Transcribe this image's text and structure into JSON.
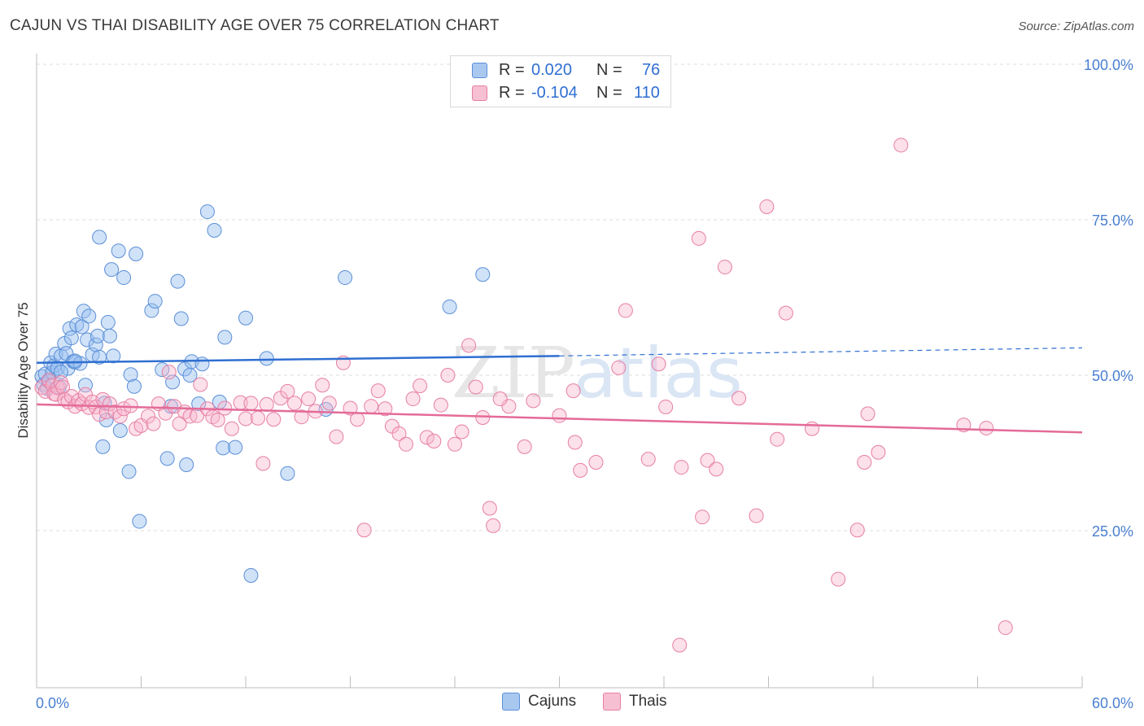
{
  "title": "CAJUN VS THAI DISABILITY AGE OVER 75 CORRELATION CHART",
  "source": "Source: ZipAtlas.com",
  "watermark": "ZIPatlas",
  "legend": {
    "rows": [
      {
        "r_label": "R =",
        "r_value": "0.020",
        "n_label": "N =",
        "n_value": "76",
        "color": "#a9c8f0",
        "border": "#5b8fd8"
      },
      {
        "r_label": "R =",
        "r_value": "-0.104",
        "n_label": "N =",
        "n_value": "110",
        "color": "#f7bfd2",
        "border": "#e77fa3"
      }
    ]
  },
  "bottom_legend": [
    {
      "label": "Cajuns",
      "color": "#a9c8f0",
      "border": "#5b8fd8"
    },
    {
      "label": "Thais",
      "color": "#f7bfd2",
      "border": "#e77fa3"
    }
  ],
  "chart_data": {
    "type": "scatter",
    "title": "CAJUN VS THAI DISABILITY AGE OVER 75 CORRELATION CHART",
    "xlabel": "",
    "ylabel": "Disability Age Over 75",
    "xlim": [
      0,
      60
    ],
    "ylim": [
      0,
      105
    ],
    "x_tick_labels": [
      "0.0%",
      "60.0%"
    ],
    "y_ticks": [
      25,
      50,
      75,
      100
    ],
    "y_tick_labels": [
      "25.0%",
      "50.0%",
      "75.0%",
      "100.0%"
    ],
    "grid": true,
    "series": [
      {
        "name": "Cajuns",
        "color": "#5b8fd8",
        "fill": "rgba(150,190,240,0.45)",
        "trend": {
          "x0": 0,
          "y0": 52.0,
          "x1": 30,
          "y1": 53.1,
          "x_dash_end": 60,
          "y_dash_end": 54.4,
          "color": "#2f6fd1"
        },
        "points": [
          [
            0.3,
            49.8
          ],
          [
            0.4,
            48.5
          ],
          [
            0.5,
            50.2
          ],
          [
            0.6,
            47.9
          ],
          [
            0.7,
            49.0
          ],
          [
            0.8,
            52.0
          ],
          [
            0.9,
            50.4
          ],
          [
            1.0,
            51.5
          ],
          [
            1.1,
            53.4
          ],
          [
            1.2,
            51.1
          ],
          [
            1.3,
            48.1
          ],
          [
            1.4,
            53.1
          ],
          [
            1.6,
            55.1
          ],
          [
            1.7,
            53.5
          ],
          [
            1.8,
            51.1
          ],
          [
            1.9,
            57.5
          ],
          [
            2.0,
            56.0
          ],
          [
            2.1,
            52.2
          ],
          [
            2.2,
            52.1
          ],
          [
            2.3,
            58.1
          ],
          [
            2.5,
            51.9
          ],
          [
            2.6,
            57.8
          ],
          [
            2.7,
            60.3
          ],
          [
            2.8,
            48.4
          ],
          [
            2.9,
            55.7
          ],
          [
            3.0,
            59.5
          ],
          [
            3.2,
            53.3
          ],
          [
            3.4,
            54.9
          ],
          [
            3.5,
            56.3
          ],
          [
            3.6,
            52.9
          ],
          [
            3.6,
            72.2
          ],
          [
            3.8,
            38.5
          ],
          [
            3.9,
            45.5
          ],
          [
            4.0,
            42.8
          ],
          [
            4.1,
            58.5
          ],
          [
            4.2,
            56.3
          ],
          [
            4.3,
            67.0
          ],
          [
            4.4,
            53.1
          ],
          [
            4.7,
            70.0
          ],
          [
            4.8,
            41.1
          ],
          [
            5.0,
            65.7
          ],
          [
            5.3,
            34.5
          ],
          [
            5.4,
            50.1
          ],
          [
            5.6,
            48.2
          ],
          [
            5.7,
            69.5
          ],
          [
            5.9,
            26.5
          ],
          [
            6.6,
            60.4
          ],
          [
            6.8,
            61.9
          ],
          [
            7.2,
            50.9
          ],
          [
            7.5,
            36.6
          ],
          [
            7.7,
            45.0
          ],
          [
            7.8,
            48.9
          ],
          [
            8.1,
            65.1
          ],
          [
            8.3,
            59.1
          ],
          [
            8.5,
            51.0
          ],
          [
            8.6,
            35.6
          ],
          [
            8.8,
            50.0
          ],
          [
            8.9,
            52.2
          ],
          [
            9.3,
            45.4
          ],
          [
            9.5,
            51.8
          ],
          [
            9.8,
            76.3
          ],
          [
            10.2,
            73.3
          ],
          [
            10.5,
            45.7
          ],
          [
            10.7,
            38.3
          ],
          [
            10.8,
            56.1
          ],
          [
            11.4,
            38.4
          ],
          [
            12.0,
            59.2
          ],
          [
            12.3,
            17.8
          ],
          [
            13.2,
            52.7
          ],
          [
            14.4,
            34.2
          ],
          [
            16.6,
            44.5
          ],
          [
            17.7,
            65.7
          ],
          [
            23.7,
            61.0
          ],
          [
            25.6,
            66.2
          ],
          [
            1.4,
            50.5
          ],
          [
            2.2,
            52.3
          ]
        ]
      },
      {
        "name": "Thais",
        "color": "#e77fa3",
        "fill": "rgba(247,180,205,0.42)",
        "trend": {
          "x0": 0,
          "y0": 45.3,
          "x1": 60,
          "y1": 40.8,
          "color": "#e46b98"
        },
        "points": [
          [
            0.3,
            48.0
          ],
          [
            0.5,
            47.4
          ],
          [
            0.7,
            49.2
          ],
          [
            0.9,
            48.4
          ],
          [
            1.0,
            47.0
          ],
          [
            1.1,
            46.9
          ],
          [
            1.2,
            48.0
          ],
          [
            1.4,
            48.8
          ],
          [
            1.5,
            48.1
          ],
          [
            1.6,
            46.1
          ],
          [
            1.8,
            45.7
          ],
          [
            2.0,
            46.6
          ],
          [
            2.2,
            45.0
          ],
          [
            2.4,
            45.9
          ],
          [
            2.6,
            45.4
          ],
          [
            2.8,
            46.9
          ],
          [
            3.0,
            44.8
          ],
          [
            3.2,
            45.7
          ],
          [
            3.4,
            44.9
          ],
          [
            3.6,
            43.7
          ],
          [
            3.8,
            46.1
          ],
          [
            4.0,
            44.1
          ],
          [
            4.2,
            45.4
          ],
          [
            4.5,
            44.1
          ],
          [
            4.8,
            43.4
          ],
          [
            5.0,
            44.6
          ],
          [
            5.4,
            45.1
          ],
          [
            5.7,
            41.4
          ],
          [
            6.0,
            41.9
          ],
          [
            6.4,
            43.4
          ],
          [
            6.7,
            42.2
          ],
          [
            7.0,
            45.4
          ],
          [
            7.4,
            43.9
          ],
          [
            7.6,
            50.5
          ],
          [
            7.9,
            45.0
          ],
          [
            8.2,
            42.2
          ],
          [
            8.5,
            44.1
          ],
          [
            8.8,
            43.4
          ],
          [
            9.2,
            43.5
          ],
          [
            9.4,
            48.5
          ],
          [
            9.8,
            44.6
          ],
          [
            10.1,
            43.3
          ],
          [
            10.4,
            42.8
          ],
          [
            10.8,
            44.7
          ],
          [
            11.2,
            41.4
          ],
          [
            11.7,
            45.6
          ],
          [
            12.0,
            43.0
          ],
          [
            12.3,
            45.5
          ],
          [
            12.7,
            43.1
          ],
          [
            13.0,
            35.8
          ],
          [
            13.2,
            45.3
          ],
          [
            13.6,
            42.9
          ],
          [
            14.0,
            46.3
          ],
          [
            14.4,
            47.4
          ],
          [
            14.8,
            45.5
          ],
          [
            15.2,
            43.3
          ],
          [
            15.6,
            46.2
          ],
          [
            16.0,
            44.2
          ],
          [
            16.4,
            48.4
          ],
          [
            16.8,
            45.5
          ],
          [
            17.2,
            40.1
          ],
          [
            17.6,
            52.0
          ],
          [
            18.0,
            44.7
          ],
          [
            18.4,
            42.9
          ],
          [
            18.8,
            25.1
          ],
          [
            19.2,
            45.0
          ],
          [
            19.6,
            47.5
          ],
          [
            20.0,
            44.6
          ],
          [
            20.4,
            41.8
          ],
          [
            20.8,
            40.6
          ],
          [
            21.2,
            38.9
          ],
          [
            21.6,
            46.2
          ],
          [
            22.0,
            48.3
          ],
          [
            22.4,
            40.0
          ],
          [
            22.8,
            39.4
          ],
          [
            23.2,
            45.2
          ],
          [
            23.6,
            50.0
          ],
          [
            24.0,
            38.9
          ],
          [
            24.4,
            40.9
          ],
          [
            24.8,
            54.8
          ],
          [
            25.2,
            48.1
          ],
          [
            25.6,
            43.2
          ],
          [
            26.0,
            28.6
          ],
          [
            26.2,
            25.8
          ],
          [
            27.1,
            45.0
          ],
          [
            28.0,
            38.5
          ],
          [
            28.5,
            45.9
          ],
          [
            30.0,
            43.5
          ],
          [
            30.8,
            47.5
          ],
          [
            30.9,
            39.2
          ],
          [
            31.2,
            34.7
          ],
          [
            32.1,
            36.0
          ],
          [
            33.4,
            51.2
          ],
          [
            33.8,
            60.4
          ],
          [
            35.1,
            36.5
          ],
          [
            35.7,
            51.8
          ],
          [
            36.1,
            44.9
          ],
          [
            37.0,
            35.2
          ],
          [
            38.0,
            72.0
          ],
          [
            38.5,
            36.3
          ],
          [
            39.0,
            34.9
          ],
          [
            39.5,
            67.4
          ],
          [
            40.3,
            46.3
          ],
          [
            41.9,
            77.1
          ],
          [
            42.5,
            39.7
          ],
          [
            43.0,
            60.0
          ],
          [
            44.5,
            41.4
          ],
          [
            46.0,
            17.2
          ],
          [
            47.7,
            43.8
          ],
          [
            49.6,
            87.0
          ]
        ]
      }
    ]
  },
  "extra_thai_points": [
    [
      36.9,
      6.6
    ],
    [
      41.3,
      27.4
    ],
    [
      47.1,
      25.1
    ],
    [
      48.3,
      37.6
    ],
    [
      54.5,
      41.5
    ],
    [
      55.6,
      9.4
    ],
    [
      53.2,
      42.0
    ],
    [
      47.5,
      36.0
    ],
    [
      38.2,
      27.2
    ],
    [
      26.6,
      46.2
    ]
  ]
}
